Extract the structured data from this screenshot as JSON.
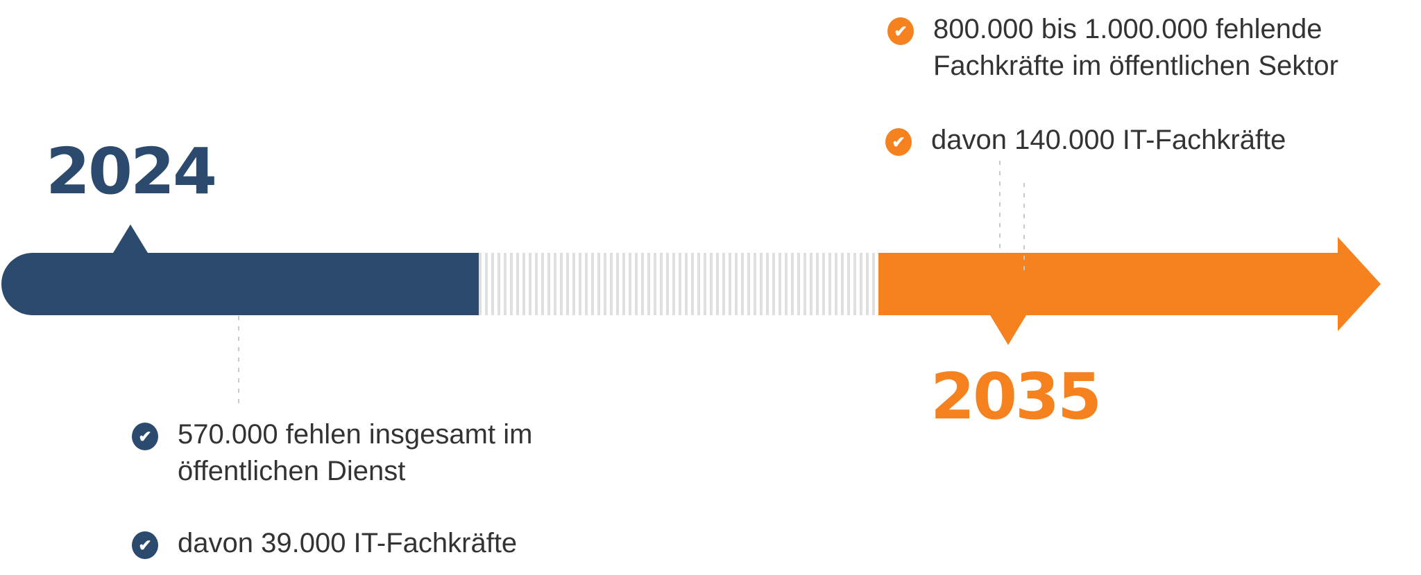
{
  "colors": {
    "navy": "#2B4A6E",
    "orange": "#F6821F",
    "body_text": "#333333",
    "dash_gray": "#C9C9C9",
    "stripe_gray": "#DFDFDF"
  },
  "icons": {
    "check": "✔"
  },
  "timeline": {
    "start_year": "2024",
    "end_year": "2035"
  },
  "annotations": {
    "top_right": {
      "items": [
        {
          "icon": "check-circle-orange",
          "text": "800.000 bis 1.000.000 fehlende Fachkräfte im öffentlichen Sektor"
        },
        {
          "icon": "check-circle-orange",
          "text": "davon 140.000 IT-Fachkräfte"
        }
      ]
    },
    "bottom_left": {
      "items": [
        {
          "icon": "check-circle-navy",
          "text": "570.000 fehlen insgesamt im öffentlichen Dienst"
        },
        {
          "icon": "check-circle-navy",
          "text": "davon 39.000 IT-Fachkräfte"
        }
      ]
    }
  }
}
